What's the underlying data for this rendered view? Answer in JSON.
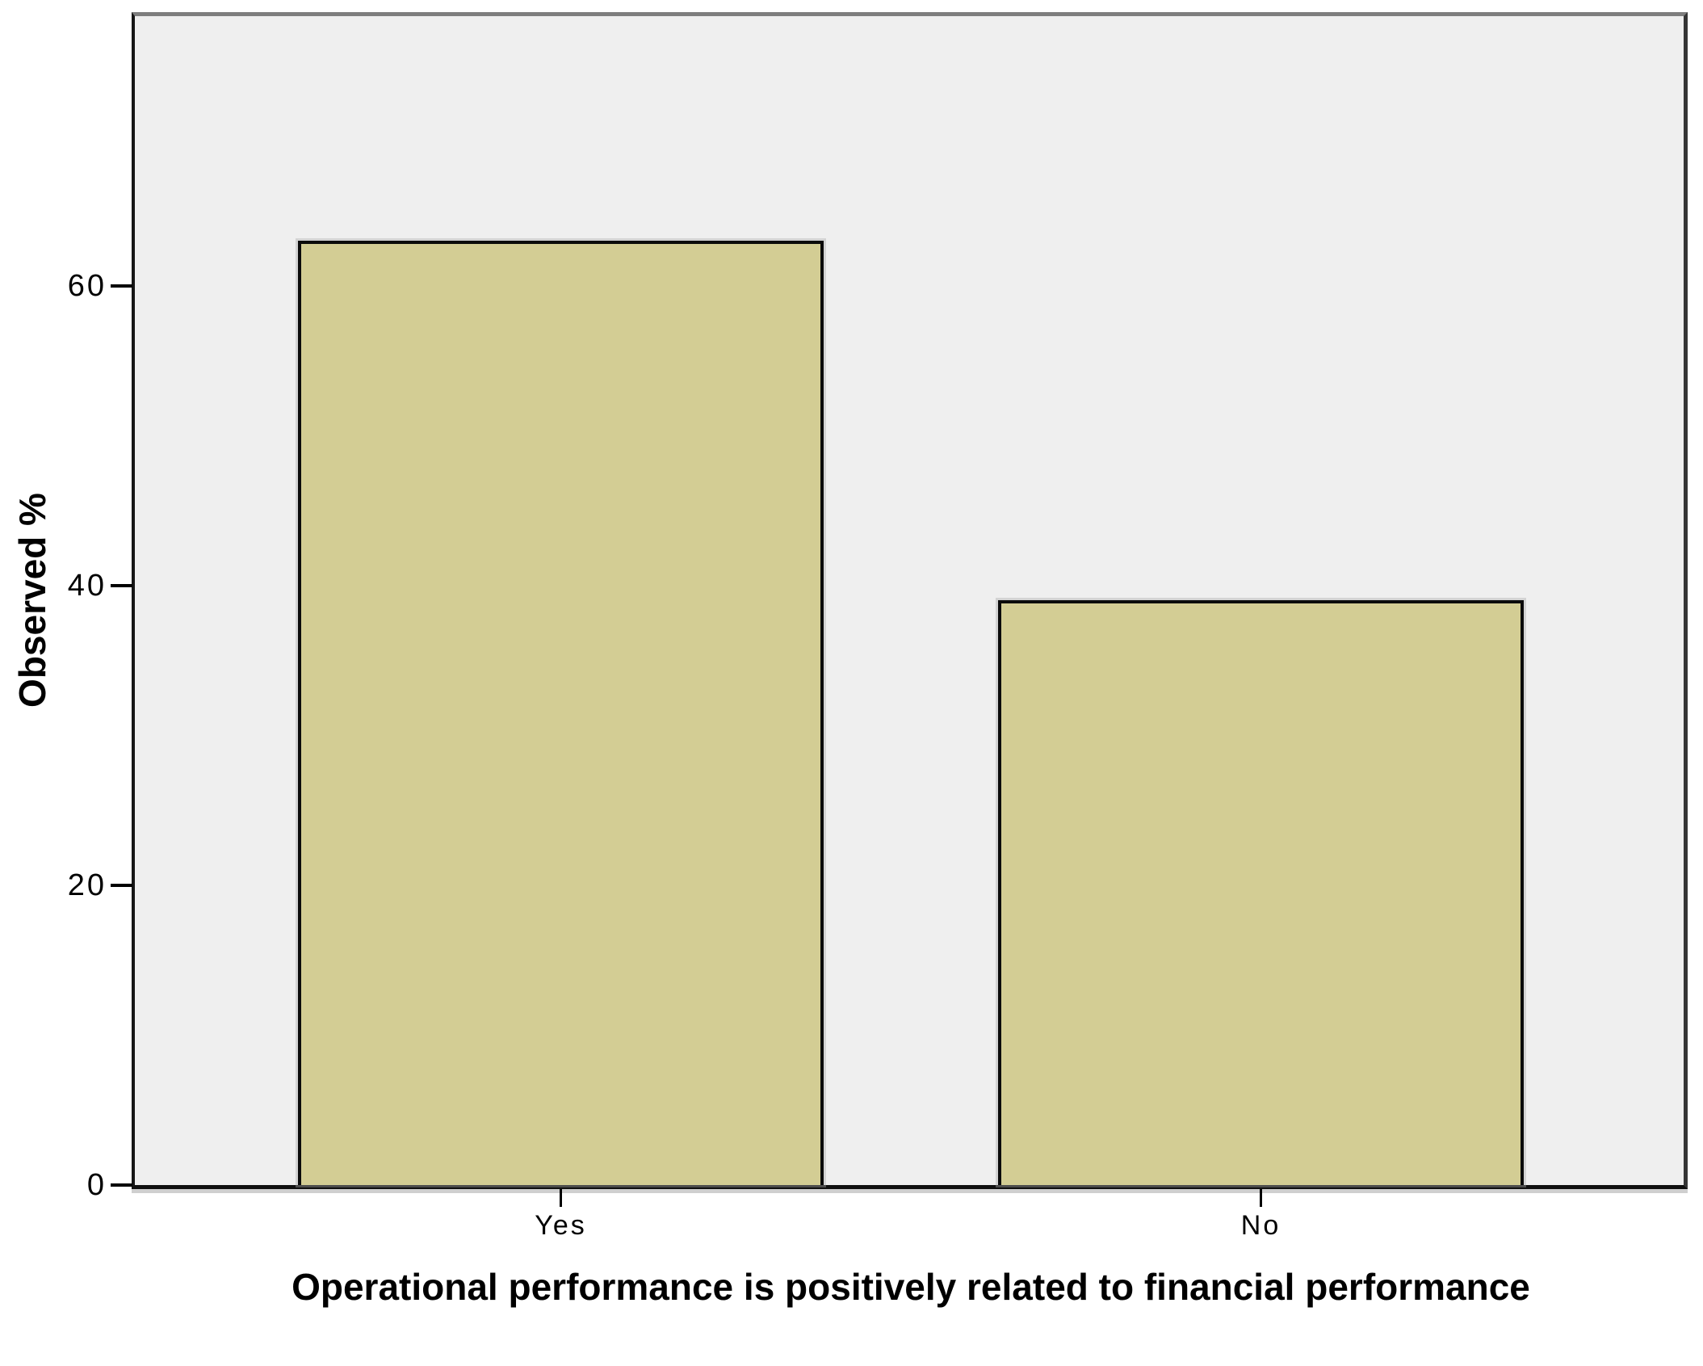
{
  "chart_data": {
    "type": "bar",
    "title": "",
    "categories": [
      "Yes",
      "No"
    ],
    "values": [
      63,
      39
    ],
    "xlabel": "Operational performance is positively related to financial performance",
    "ylabel": "Observed %",
    "yticks": [
      0,
      20,
      40,
      60
    ],
    "ylim": [
      0,
      78
    ],
    "grid": "off",
    "legend": "none",
    "bar_fill_color": "#d3cd94",
    "bar_border_color": "#000000",
    "plot_background_color": "#efefef",
    "page_background_color": "#ffffff"
  }
}
